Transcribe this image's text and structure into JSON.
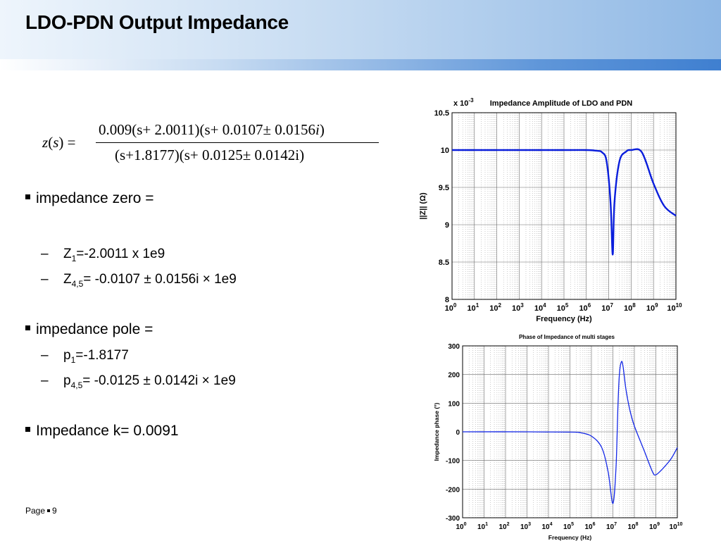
{
  "slide": {
    "title": "LDO-PDN Output Impedance",
    "footer": {
      "page_label": "Page",
      "page_number": "9"
    }
  },
  "equation": {
    "lhs": "z(s) =",
    "lhs_z": "z",
    "lhs_s": "s",
    "numerator": "0.009(s+ 2.0011)(s+ 0.0107± 0.0156",
    "numerator_i": "i",
    "numerator_end": ")",
    "denominator": "(s+1.8177)(s+ 0.0125± 0.0142i)"
  },
  "bullets": [
    {
      "text": "impedance zero ="
    },
    {
      "prefix": "Z",
      "sub": "1",
      "text": "=-2.0011 x 1e9"
    },
    {
      "prefix": "Z",
      "sub": "4,5",
      "text": "=  -0.0107 ± 0.0156i × 1e9"
    },
    {
      "text": "impedance pole ="
    },
    {
      "prefix": "p",
      "sub": "1",
      "text": "=-1.8177"
    },
    {
      "prefix": "p",
      "sub": "4,5",
      "text": "= -0.0125 ± 0.0142i × 1e9"
    },
    {
      "text": "Impedance k= 0.0091"
    }
  ],
  "chart_data": [
    {
      "type": "line",
      "title": "Impedance Amplitude of LDO and PDN",
      "scale_note": "x 10",
      "scale_exp": "-3",
      "xlabel": "Frequency (Hz)",
      "ylabel": "||Z|| (Ω)",
      "xscale": "log",
      "xlim": [
        1,
        10000000000
      ],
      "ylim": [
        8,
        10.5
      ],
      "xticks_exp": [
        "0",
        "1",
        "2",
        "3",
        "4",
        "5",
        "6",
        "7",
        "8",
        "9",
        "10"
      ],
      "yticks": [
        "8",
        "8.5",
        "9",
        "9.5",
        "10",
        "10.5"
      ],
      "grid": true,
      "color": "#0a1edc",
      "series": [
        {
          "x": [
            1,
            100000,
            1000000,
            3000000,
            5000000,
            8000000,
            12000000,
            15000000,
            18000000,
            30000000,
            60000000,
            100000000,
            300000000,
            1000000000,
            3000000000,
            10000000000
          ],
          "y": [
            10.0,
            10.0,
            10.0,
            9.99,
            9.97,
            9.85,
            9.3,
            8.6,
            9.3,
            9.85,
            9.98,
            10.0,
            9.97,
            9.55,
            9.25,
            9.12
          ]
        }
      ]
    },
    {
      "type": "line",
      "title": "Phase of Impedance of multi stages",
      "xlabel": "Frequency (Hz)",
      "ylabel": "Impedance phase (°)",
      "xscale": "log",
      "xlim": [
        1,
        10000000000
      ],
      "ylim": [
        -300,
        300
      ],
      "xticks_exp": [
        "0",
        "1",
        "2",
        "3",
        "4",
        "5",
        "6",
        "7",
        "8",
        "9",
        "10"
      ],
      "yticks": [
        "-300",
        "-200",
        "-100",
        "0",
        "100",
        "200",
        "300"
      ],
      "grid": true,
      "color": "#1428e6",
      "series": [
        {
          "x": [
            1,
            1000,
            100000,
            300000,
            1000000,
            3000000,
            6000000,
            10000000,
            14000000,
            17000000,
            20000000,
            25000000,
            30000000,
            40000000,
            60000000,
            100000000,
            300000000,
            700000000,
            1000000000,
            2000000000,
            5000000000,
            10000000000
          ],
          "y": [
            0,
            0,
            -1,
            -3,
            -15,
            -55,
            -140,
            -250,
            -120,
            80,
            200,
            245,
            225,
            150,
            80,
            20,
            -70,
            -140,
            -150,
            -130,
            -95,
            -55
          ]
        }
      ]
    }
  ]
}
